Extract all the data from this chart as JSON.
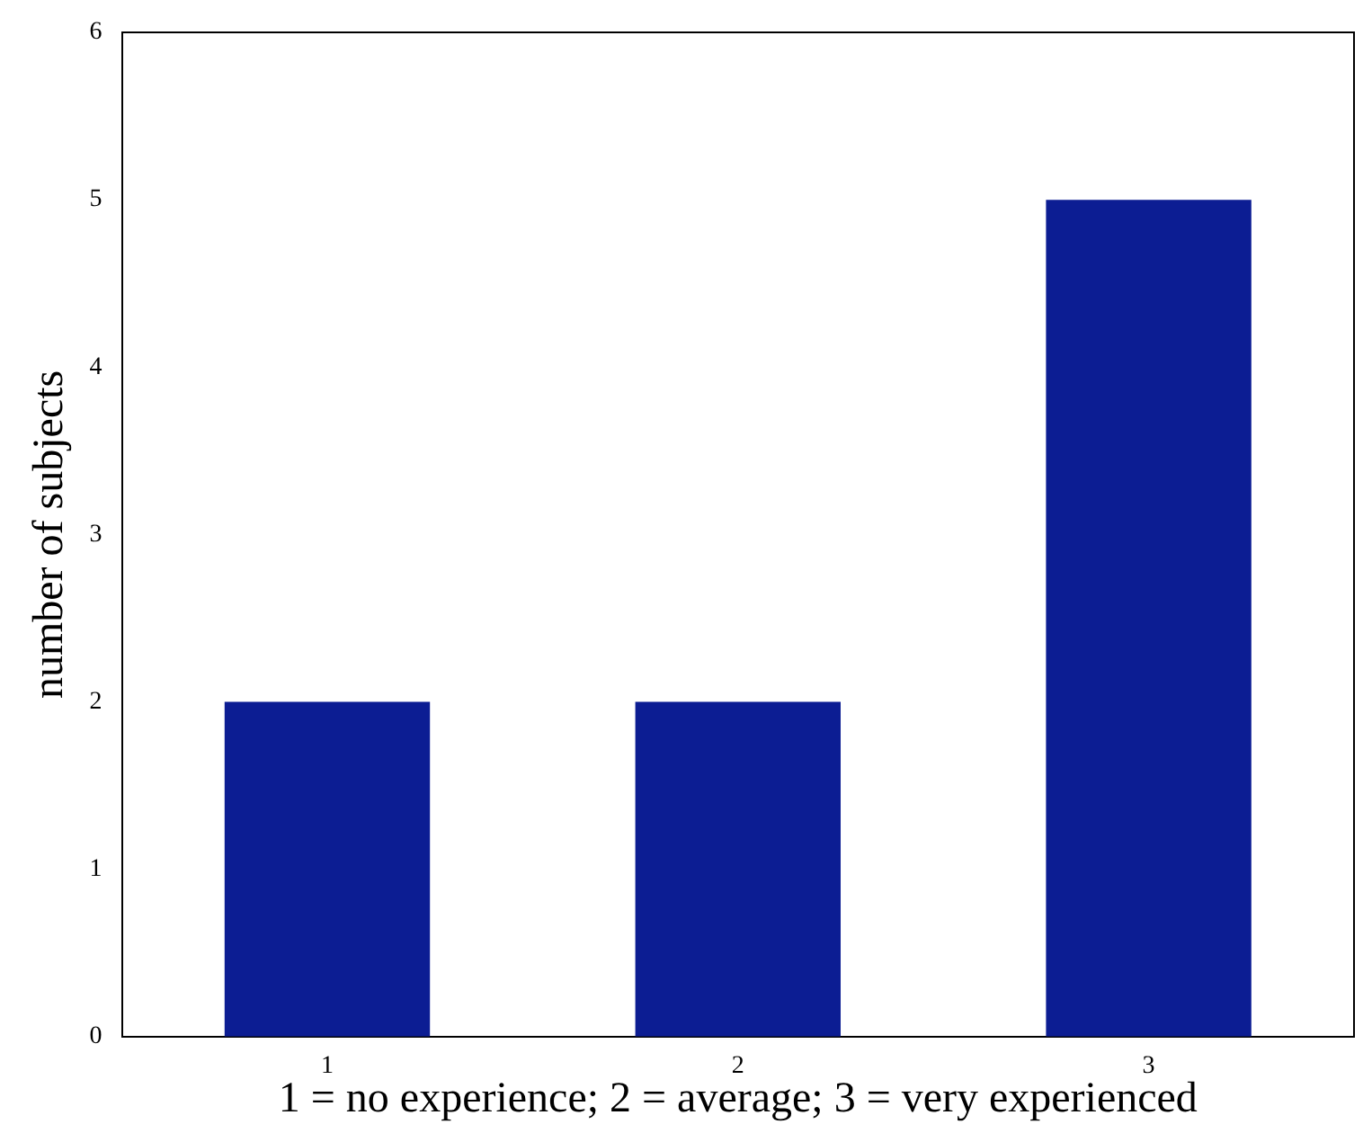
{
  "chart_data": {
    "type": "bar",
    "xlabel": "1 = no experience; 2 = average; 3 = very experienced",
    "ylabel": "number of subjects",
    "categories": [
      "1",
      "2",
      "3"
    ],
    "values": [
      2,
      2,
      5
    ],
    "color": "#0c1d93",
    "ylim": [
      0,
      6
    ],
    "yticks": [
      0,
      1,
      2,
      3,
      4,
      5,
      6
    ],
    "grid": false
  }
}
